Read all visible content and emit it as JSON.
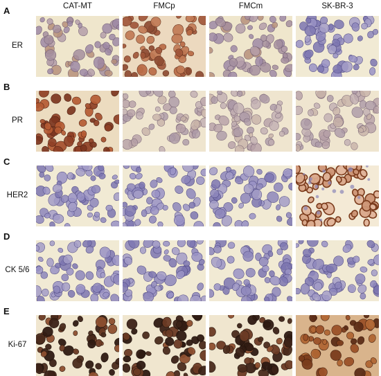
{
  "columns": [
    "CAT-MT",
    "FMCp",
    "FMCm",
    "SK-BR-3"
  ],
  "rows": [
    {
      "letter": "A",
      "label": "ER",
      "stain": [
        "weak-brown",
        "strong-brown",
        "weak-brown",
        "blue"
      ]
    },
    {
      "letter": "B",
      "label": "PR",
      "stain": [
        "nuclear-brown",
        "pale",
        "pale",
        "pale"
      ]
    },
    {
      "letter": "C",
      "label": "HER2",
      "stain": [
        "blue",
        "blue",
        "blue",
        "membrane-brown"
      ]
    },
    {
      "letter": "D",
      "label": "CK 5/6",
      "stain": [
        "blue",
        "blue",
        "blue",
        "blue"
      ]
    },
    {
      "letter": "E",
      "label": "Ki-67",
      "stain": [
        "dark-nuclear",
        "dark-nuclear",
        "dark-nuclear",
        "dark-brown-dense"
      ]
    }
  ],
  "colors": {
    "background": "#f1ead2",
    "blue_cell": "#8e86bd",
    "brown_cell": "#a9613a",
    "dark_nuclear": "#3a2216"
  }
}
